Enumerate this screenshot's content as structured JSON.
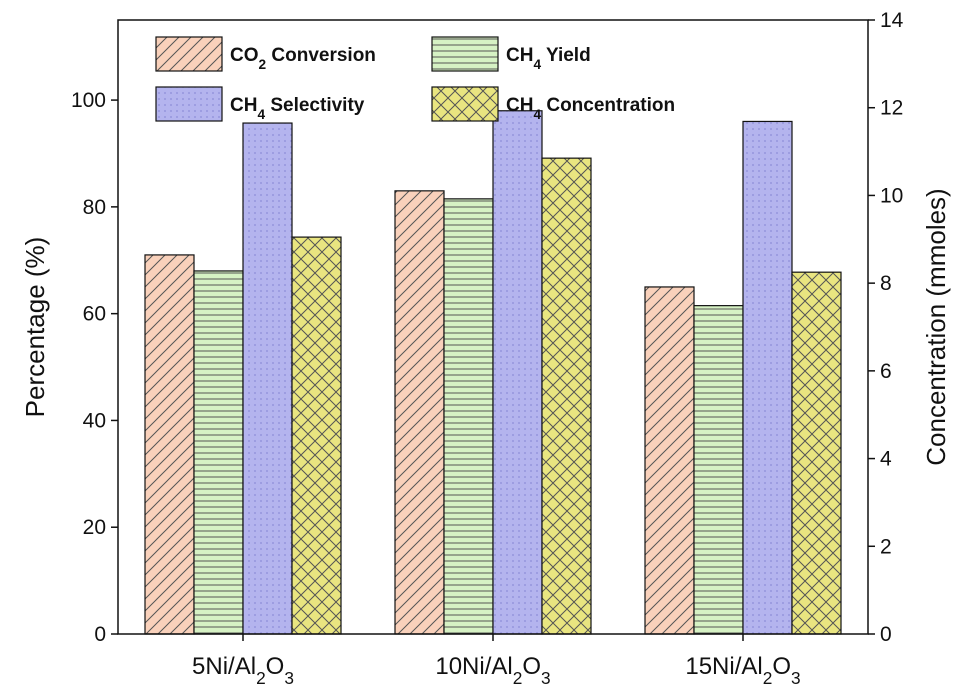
{
  "chart_data": {
    "type": "bar",
    "categories": [
      {
        "base": "5Ni/Al",
        "sub1": "2",
        "mid": "O",
        "sub2": "3"
      },
      {
        "base": "10Ni/Al",
        "sub1": "2",
        "mid": "O",
        "sub2": "3"
      },
      {
        "base": "15Ni/Al",
        "sub1": "2",
        "mid": "O",
        "sub2": "3"
      }
    ],
    "ylabel_left": "Percentage (%)",
    "ylabel_right": "Concentration (mmoles)",
    "ylim_left": [
      0,
      115
    ],
    "ylim_right": [
      0,
      14
    ],
    "yticks_left": [
      0,
      20,
      40,
      60,
      80,
      100
    ],
    "yticks_right": [
      0,
      2,
      4,
      6,
      8,
      10,
      12,
      14
    ],
    "legend_position": "top",
    "grid": false,
    "series": [
      {
        "name": {
          "pre": "CO",
          "sub": "2",
          "post": " Conversion"
        },
        "axis": "left",
        "values": [
          71,
          83,
          65
        ],
        "fill": "#f9d1bb",
        "pattern": "diagonal"
      },
      {
        "name": {
          "pre": "CH",
          "sub": "4",
          "post": " Yield"
        },
        "axis": "left",
        "values": [
          68,
          81.5,
          61.5
        ],
        "fill": "#d6f2c4",
        "pattern": "horizontal"
      },
      {
        "name": {
          "pre": "CH",
          "sub": "4",
          "post": " Selectivity"
        },
        "axis": "left",
        "values": [
          95.7,
          98,
          96
        ],
        "fill": "#b4b4ee",
        "pattern": "dots"
      },
      {
        "name": {
          "pre": "CH",
          "sub": "4",
          "post": " Concentration"
        },
        "axis": "right",
        "values": [
          9.05,
          10.85,
          8.25
        ],
        "fill": "#e9e580",
        "pattern": "crosshatch"
      }
    ]
  }
}
